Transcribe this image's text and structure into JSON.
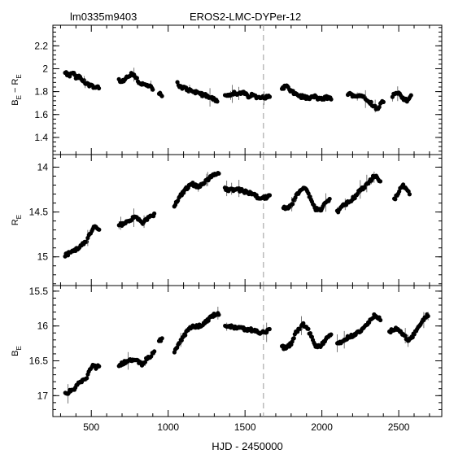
{
  "header": {
    "field_label": "lm0335m9403",
    "star_label": "EROS2-LMC-DYPer-12"
  },
  "chart_data": {
    "type": "scatter",
    "layout": "three vertically stacked panels sharing x axis",
    "xlabel": "HJD - 2450000",
    "xlim": [
      250,
      2780
    ],
    "xticks": [
      500,
      1000,
      1500,
      2000,
      2500
    ],
    "marker_reference_x": 1620,
    "marker_color": "#999999",
    "point_color": "#000000",
    "panels": [
      {
        "name": "color",
        "ylabel_main": "B",
        "ylabel_sub": "E",
        "ylabel_mid": " − ",
        "ylabel_main2": "R",
        "ylabel_sub2": "E",
        "ylim": [
          1.25,
          2.38
        ],
        "inverted": false,
        "yticks": [
          "1.4",
          "1.6",
          "1.8",
          "2",
          "2.2"
        ],
        "ytick_values": [
          1.4,
          1.6,
          1.8,
          2.0,
          2.2
        ],
        "segments": [
          {
            "x": [
              330,
              360,
              380,
              400,
              420,
              440,
              460,
              480,
              500,
              520,
              550
            ],
            "y": [
              1.96,
              1.94,
              1.97,
              1.92,
              1.93,
              1.9,
              1.88,
              1.86,
              1.86,
              1.84,
              1.84
            ]
          },
          {
            "x": [
              680,
              700,
              730,
              760,
              790,
              810,
              840,
              870,
              900
            ],
            "y": [
              1.9,
              1.88,
              1.92,
              1.95,
              1.93,
              1.88,
              1.86,
              1.85,
              1.83
            ]
          },
          {
            "x": [
              940,
              960
            ],
            "y": [
              1.79,
              1.75
            ]
          },
          {
            "x": [
              1060,
              1080,
              1110,
              1140,
              1170,
              1200,
              1230,
              1260,
              1290,
              1320
            ],
            "y": [
              1.88,
              1.84,
              1.83,
              1.81,
              1.8,
              1.79,
              1.77,
              1.76,
              1.74,
              1.72
            ]
          },
          {
            "x": [
              1370,
              1400,
              1430,
              1460,
              1490,
              1520,
              1550,
              1580,
              1610,
              1640,
              1660
            ],
            "y": [
              1.78,
              1.77,
              1.79,
              1.78,
              1.79,
              1.76,
              1.77,
              1.75,
              1.76,
              1.75,
              1.76
            ]
          },
          {
            "x": [
              1740,
              1770,
              1800,
              1830,
              1860,
              1890,
              1920,
              1950,
              1990,
              2030,
              2060
            ],
            "y": [
              1.83,
              1.85,
              1.8,
              1.78,
              1.76,
              1.75,
              1.74,
              1.76,
              1.73,
              1.75,
              1.74
            ]
          },
          {
            "x": [
              2170,
              2200,
              2230,
              2260,
              2290,
              2320,
              2340,
              2360,
              2380,
              2400
            ],
            "y": [
              1.78,
              1.77,
              1.76,
              1.77,
              1.74,
              1.7,
              1.67,
              1.65,
              1.69,
              1.72
            ]
          },
          {
            "x": [
              2460,
              2480,
              2500,
              2520,
              2540,
              2560,
              2580
            ],
            "y": [
              1.76,
              1.79,
              1.78,
              1.75,
              1.73,
              1.72,
              1.76
            ]
          }
        ]
      },
      {
        "name": "red",
        "ylabel_main": "R",
        "ylabel_sub": "E",
        "ylim": [
          13.86,
          15.32
        ],
        "inverted": true,
        "yticks": [
          "14",
          "14.5",
          "15"
        ],
        "ytick_values": [
          14.0,
          14.5,
          15.0
        ],
        "segments": [
          {
            "x": [
              330,
              360,
              390,
              410,
              430,
              450,
              470,
              490,
              510,
              530,
              550
            ],
            "y": [
              14.98,
              14.96,
              14.93,
              14.9,
              14.88,
              14.85,
              14.82,
              14.74,
              14.69,
              14.66,
              14.7
            ]
          },
          {
            "x": [
              680,
              710,
              740,
              770,
              790,
              810,
              830,
              850,
              870,
              890,
              910
            ],
            "y": [
              14.65,
              14.63,
              14.61,
              14.57,
              14.55,
              14.58,
              14.63,
              14.6,
              14.57,
              14.55,
              14.52
            ]
          },
          {
            "x": [
              1040,
              1070,
              1100,
              1130,
              1160,
              1190,
              1220,
              1250,
              1280,
              1310,
              1330
            ],
            "y": [
              14.44,
              14.34,
              14.27,
              14.22,
              14.19,
              14.22,
              14.2,
              14.15,
              14.1,
              14.07,
              14.06
            ]
          },
          {
            "x": [
              1370,
              1400,
              1430,
              1460,
              1490,
              1520,
              1550,
              1580,
              1610,
              1640,
              1660
            ],
            "y": [
              14.24,
              14.26,
              14.25,
              14.25,
              14.27,
              14.28,
              14.3,
              14.33,
              14.34,
              14.34,
              14.3
            ]
          },
          {
            "x": [
              1750,
              1780,
              1810,
              1840,
              1860,
              1880,
              1900,
              1930,
              1960,
              1990,
              2020,
              2050
            ],
            "y": [
              14.46,
              14.45,
              14.4,
              14.3,
              14.26,
              14.22,
              14.25,
              14.37,
              14.47,
              14.48,
              14.41,
              14.36
            ]
          },
          {
            "x": [
              2100,
              2140,
              2180,
              2220,
              2250,
              2280,
              2310,
              2340,
              2360,
              2380
            ],
            "y": [
              14.5,
              14.43,
              14.38,
              14.32,
              14.25,
              14.22,
              14.16,
              14.1,
              14.12,
              14.15
            ]
          },
          {
            "x": [
              2470,
              2490,
              2510,
              2530,
              2550,
              2570
            ],
            "y": [
              14.35,
              14.32,
              14.23,
              14.2,
              14.26,
              14.3
            ]
          }
        ]
      },
      {
        "name": "blue",
        "ylabel_main": "B",
        "ylabel_sub": "E",
        "ylim": [
          15.42,
          17.3
        ],
        "inverted": true,
        "yticks": [
          "15.5",
          "16",
          "16.5",
          "17"
        ],
        "ytick_values": [
          15.5,
          16.0,
          16.5,
          17.0
        ],
        "segments": [
          {
            "x": [
              330,
              360,
              390,
              410,
              430,
              450,
              470,
              490,
              510,
              530,
              550
            ],
            "y": [
              16.98,
              16.94,
              16.9,
              16.85,
              16.8,
              16.78,
              16.73,
              16.62,
              16.56,
              16.6,
              16.57
            ]
          },
          {
            "x": [
              680,
              710,
              740,
              770,
              790,
              810,
              830,
              850,
              870,
              890,
              910
            ],
            "y": [
              16.56,
              16.53,
              16.5,
              16.5,
              16.48,
              16.51,
              16.56,
              16.5,
              16.45,
              16.42,
              16.38
            ]
          },
          {
            "x": [
              940,
              960
            ],
            "y": [
              16.22,
              16.18
            ]
          },
          {
            "x": [
              1040,
              1070,
              1100,
              1130,
              1160,
              1190,
              1220,
              1250,
              1280,
              1310,
              1330
            ],
            "y": [
              16.36,
              16.26,
              16.15,
              16.06,
              16.0,
              16.01,
              15.99,
              15.93,
              15.86,
              15.83,
              15.82
            ]
          },
          {
            "x": [
              1370,
              1400,
              1430,
              1460,
              1490,
              1520,
              1550,
              1580,
              1610,
              1640,
              1660
            ],
            "y": [
              15.99,
              16.01,
              16.02,
              16.03,
              16.04,
              16.05,
              16.06,
              16.08,
              16.1,
              16.08,
              16.06
            ]
          },
          {
            "x": [
              1740,
              1770,
              1800,
              1830,
              1860,
              1880,
              1900,
              1930,
              1960,
              1990,
              2020,
              2060
            ],
            "y": [
              16.3,
              16.32,
              16.25,
              16.1,
              16.02,
              15.98,
              16.0,
              16.15,
              16.28,
              16.3,
              16.2,
              16.1
            ]
          },
          {
            "x": [
              2100,
              2140,
              2180,
              2220,
              2260,
              2290,
              2320,
              2340,
              2360,
              2380
            ],
            "y": [
              16.26,
              16.2,
              16.15,
              16.12,
              16.05,
              15.98,
              15.9,
              15.84,
              15.87,
              15.9
            ]
          },
          {
            "x": [
              2440,
              2470,
              2500,
              2530,
              2560,
              2590,
              2620,
              2650,
              2670,
              2690
            ],
            "y": [
              16.08,
              16.04,
              16.05,
              16.12,
              16.2,
              16.15,
              16.05,
              15.95,
              15.87,
              15.84
            ]
          }
        ]
      }
    ]
  }
}
